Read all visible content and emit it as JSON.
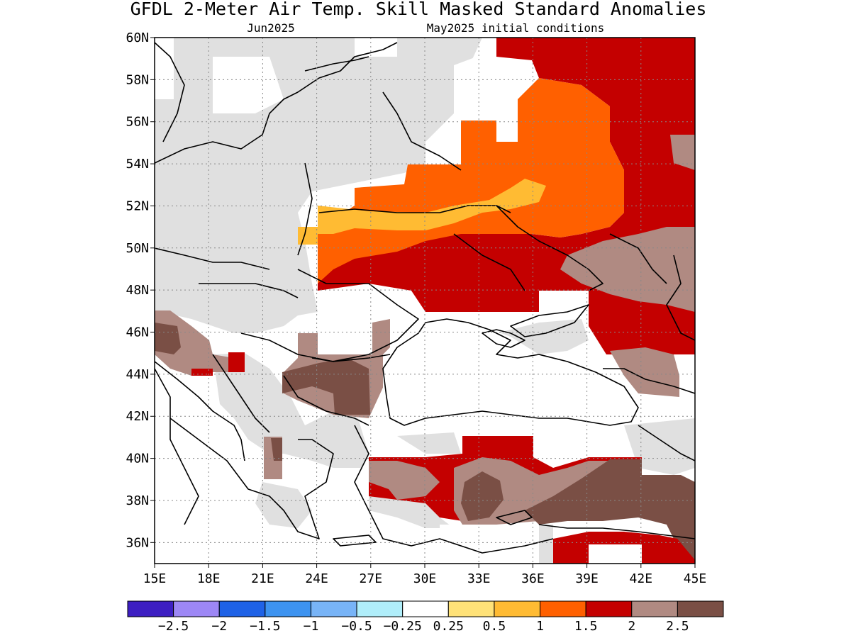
{
  "title": "GFDL 2-Meter Air Temp. Skill Masked Standard Anomalies",
  "subtitle_left": "Jun2025",
  "subtitle_right": "May2025 initial conditions",
  "map": {
    "lon_range": [
      15,
      45
    ],
    "lat_range": [
      35,
      60
    ],
    "lon_ticks": [
      "15E",
      "18E",
      "21E",
      "24E",
      "27E",
      "30E",
      "33E",
      "36E",
      "39E",
      "42E",
      "45E"
    ],
    "lat_ticks": [
      "60N",
      "58N",
      "56N",
      "54N",
      "52N",
      "50N",
      "48N",
      "46N",
      "44N",
      "42N",
      "40N",
      "38N",
      "36N"
    ],
    "gridlines": "dotted"
  },
  "colorbar": {
    "colors": [
      "#3d1fc2",
      "#9d87f5",
      "#1f62e6",
      "#3d93f0",
      "#78b4f7",
      "#b0eefa",
      "#ffffff",
      "#ffe278",
      "#ffbb33",
      "#ff6000",
      "#c40000",
      "#b08a82",
      "#7a4f45"
    ],
    "labels": [
      "-2.5",
      "-2",
      "-1.5",
      "-1",
      "-0.5",
      "-0.25",
      "0.25",
      "0.5",
      "1",
      "1.5",
      "2",
      "2.5"
    ]
  },
  "palette": {
    "mask_gray": "#e0e0e0",
    "c0_5": "#ffe278",
    "c1": "#ffbb33",
    "c1_5": "#ff6000",
    "c2": "#c40000",
    "c2_5": "#b08a82",
    "c3": "#7a4f45"
  }
}
